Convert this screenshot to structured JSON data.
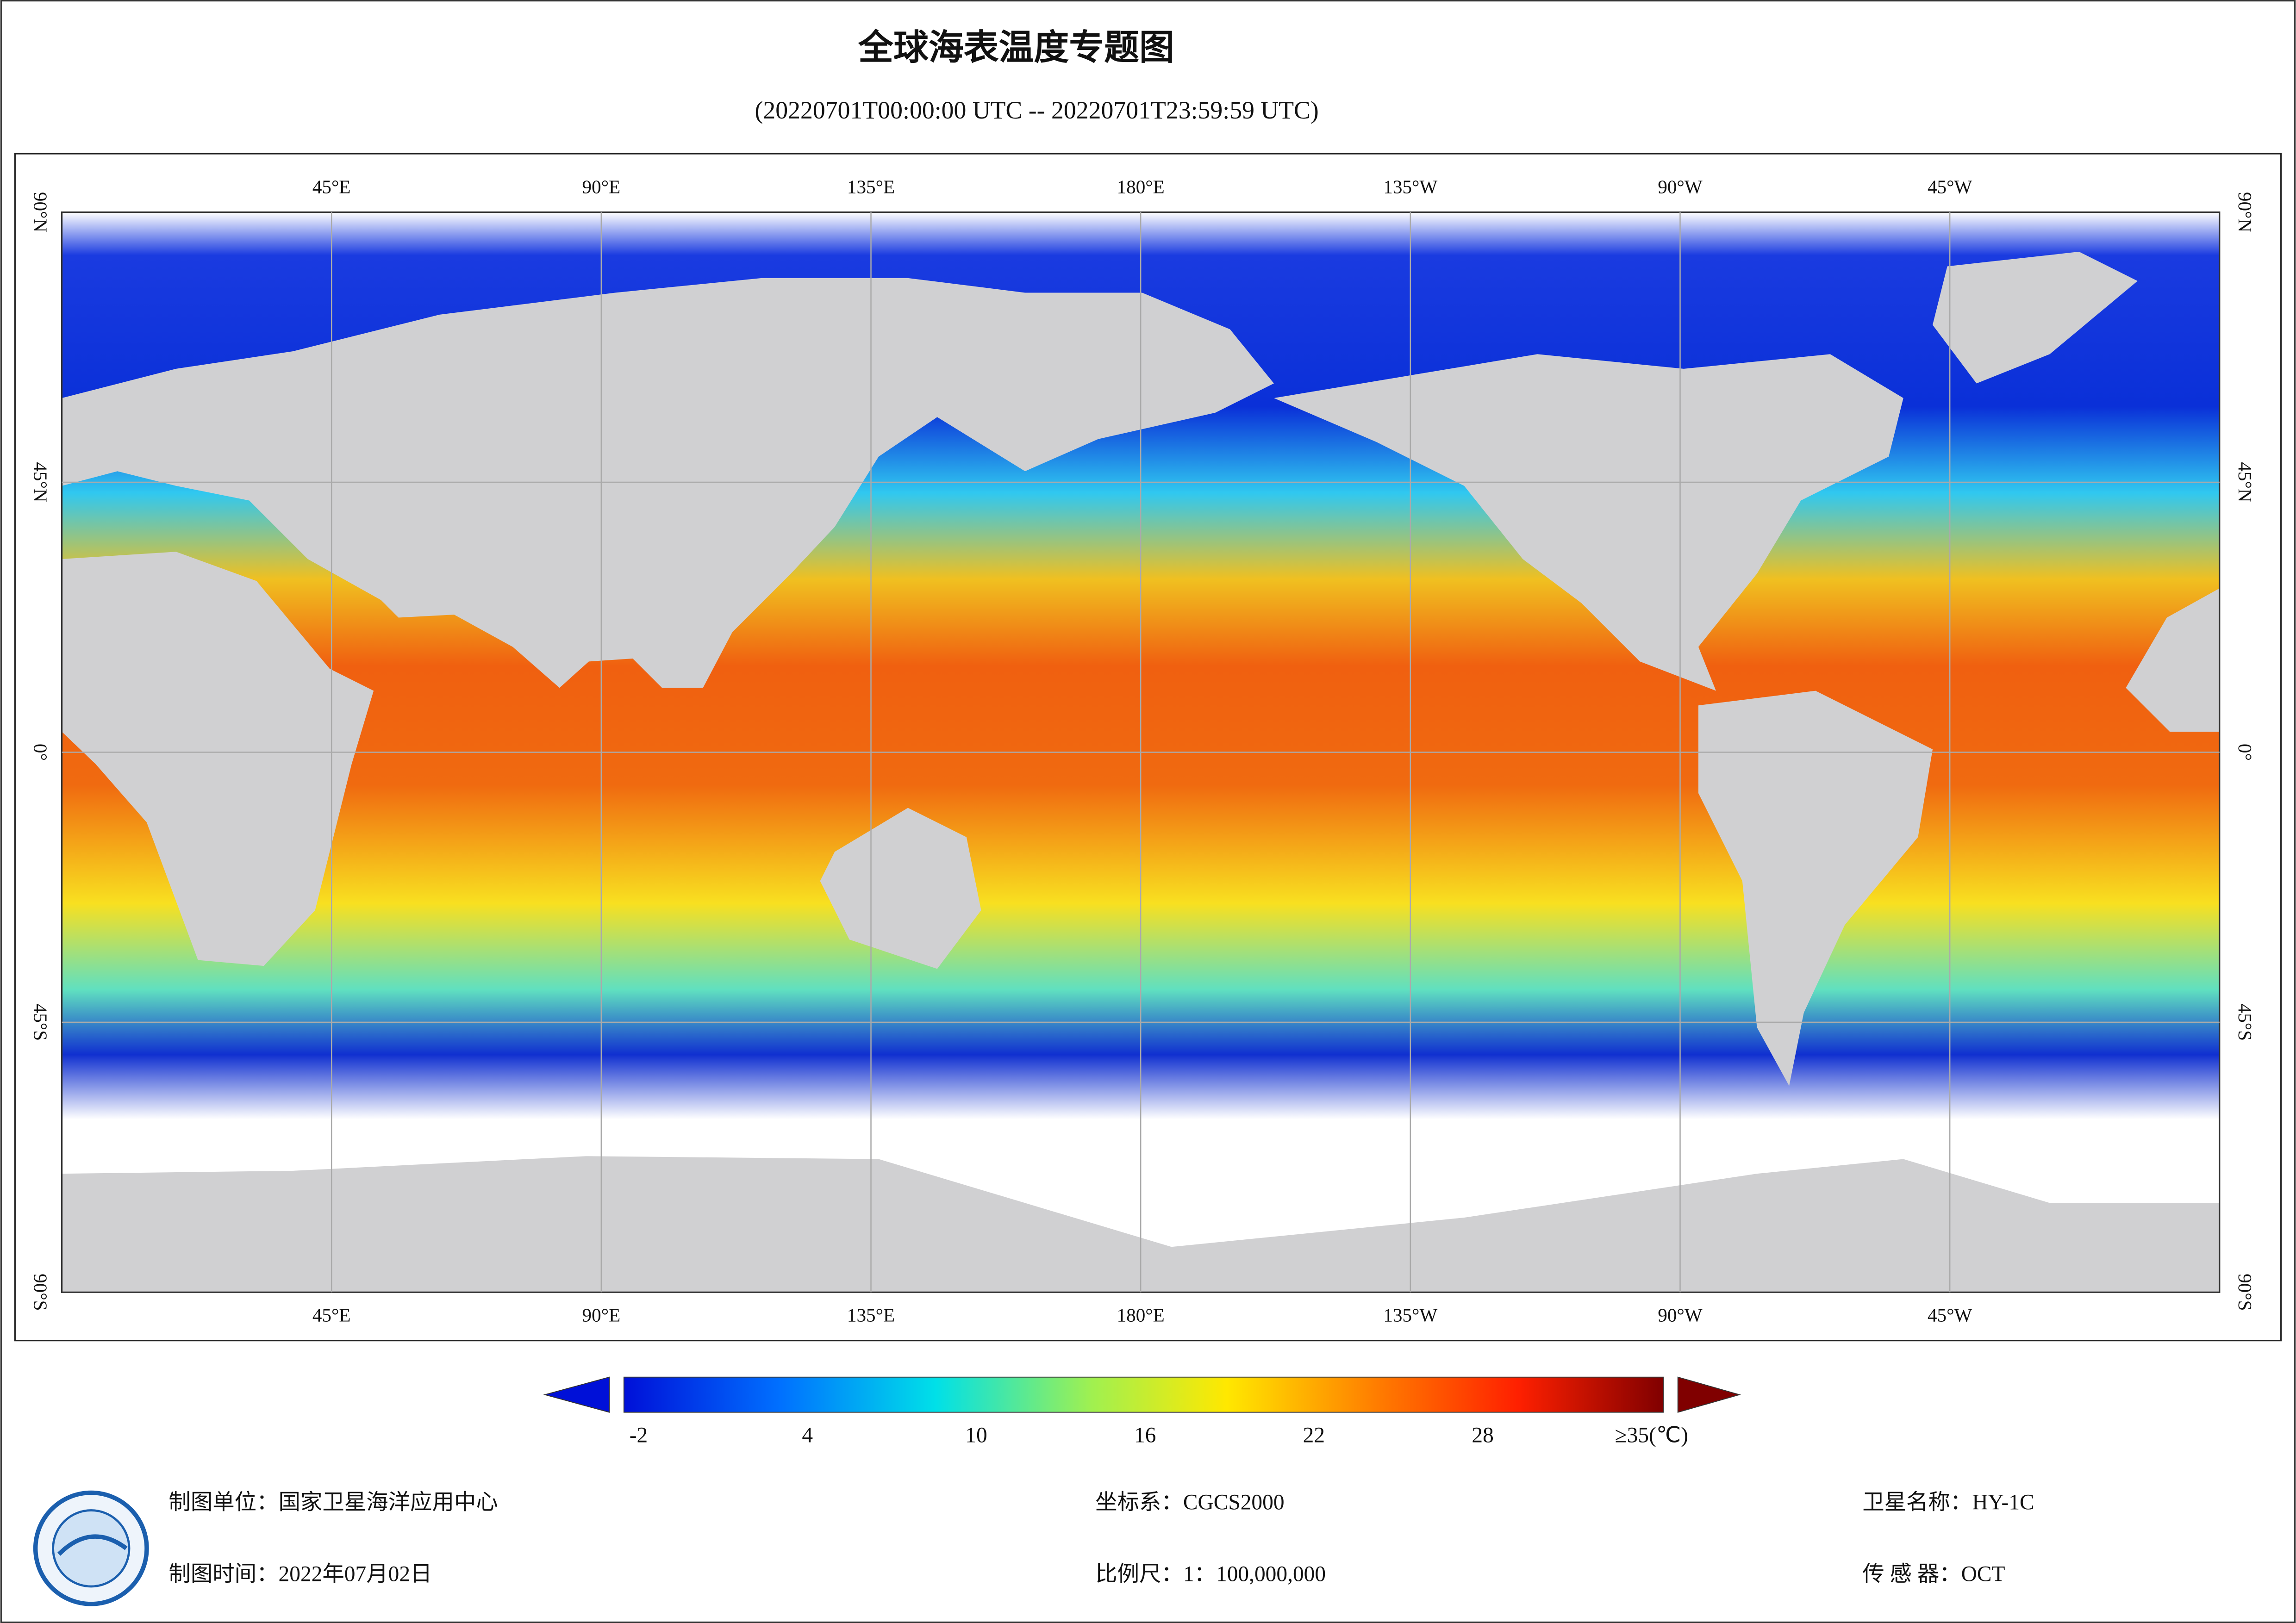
{
  "header": {
    "title": "全球海表温度专题图",
    "subtitle": "(20220701T00:00:00 UTC -- 20220701T23:59:59 UTC)"
  },
  "map": {
    "lon_labels": [
      "45°E",
      "90°E",
      "135°E",
      "180°E",
      "135°W",
      "90°W",
      "45°W"
    ],
    "lat_labels": [
      "90°N",
      "45°N",
      "0°",
      "45°S",
      "90°S"
    ]
  },
  "colorbar": {
    "labels": [
      "-2",
      "4",
      "10",
      "16",
      "22",
      "28",
      "≥35(℃)"
    ]
  },
  "footer": {
    "unit": "制图单位：国家卫星海洋应用中心",
    "date": "制图时间：2022年07月02日",
    "crs": "坐标系：CGCS2000",
    "scale": "比例尺：1：100,000,000",
    "satellite": "卫星名称：HY-1C",
    "sensor": "传 感 器：OCT"
  }
}
